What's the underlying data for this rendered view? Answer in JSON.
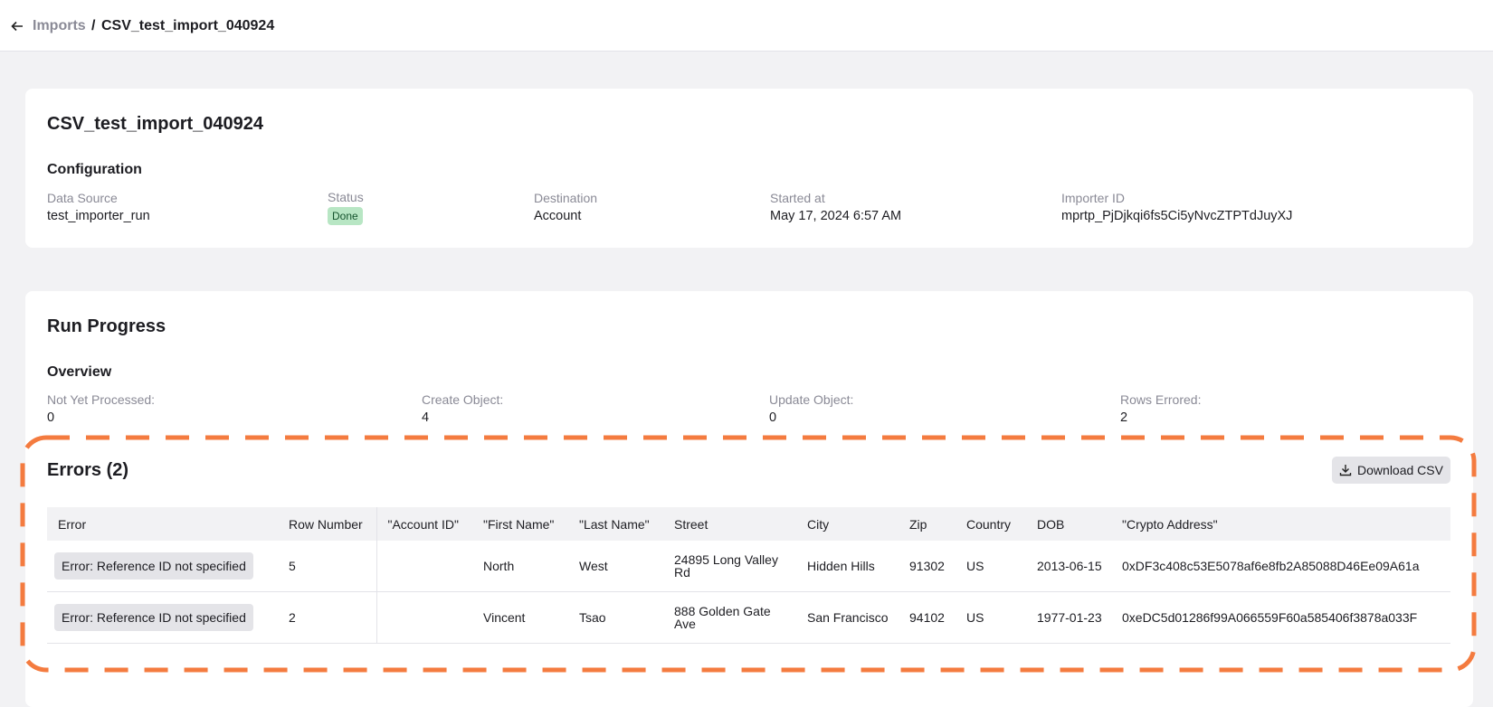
{
  "breadcrumb": {
    "parent": "Imports",
    "separator": "/",
    "current": "CSV_test_import_040924"
  },
  "config_card": {
    "title": "CSV_test_import_040924",
    "section": "Configuration",
    "fields": [
      {
        "label": "Data Source",
        "value": "test_importer_run"
      },
      {
        "label": "Status",
        "value": "Done"
      },
      {
        "label": "Destination",
        "value": "Account"
      },
      {
        "label": "Started at",
        "value": "May 17, 2024 6:57 AM"
      },
      {
        "label": "Importer ID",
        "value": "mprtp_PjDjkqi6fs5Ci5yNvcZTPTdJuyXJ"
      }
    ]
  },
  "run_progress": {
    "title": "Run Progress",
    "section": "Overview",
    "stats": [
      {
        "label": "Not Yet Processed:",
        "value": "0"
      },
      {
        "label": "Create Object:",
        "value": "4"
      },
      {
        "label": "Update Object:",
        "value": "0"
      },
      {
        "label": "Rows Errored:",
        "value": "2"
      }
    ]
  },
  "errors": {
    "title": "Errors (2)",
    "download_button": "Download CSV",
    "table": {
      "headers": [
        "Error",
        "Row Number",
        "\"Account ID\"",
        "\"First Name\"",
        "\"Last Name\"",
        "Street",
        "City",
        "Zip",
        "Country",
        "DOB",
        "\"Crypto Address\""
      ],
      "rows": [
        [
          "Error: Reference ID not specified",
          "5",
          "",
          "North",
          "West",
          "24895 Long Valley Rd",
          "Hidden Hills",
          "91302",
          "US",
          "2013-06-15",
          "0xDF3c408c53E5078af6e8fb2A85088D46Ee09A61a"
        ],
        [
          "Error: Reference ID not specified",
          "2",
          "",
          "Vincent",
          "Tsao",
          "888 Golden Gate Ave",
          "San Francisco",
          "94102",
          "US",
          "1977-01-23",
          "0xeDC5d01286f99A066559F60a585406f3878a033F"
        ]
      ]
    }
  }
}
